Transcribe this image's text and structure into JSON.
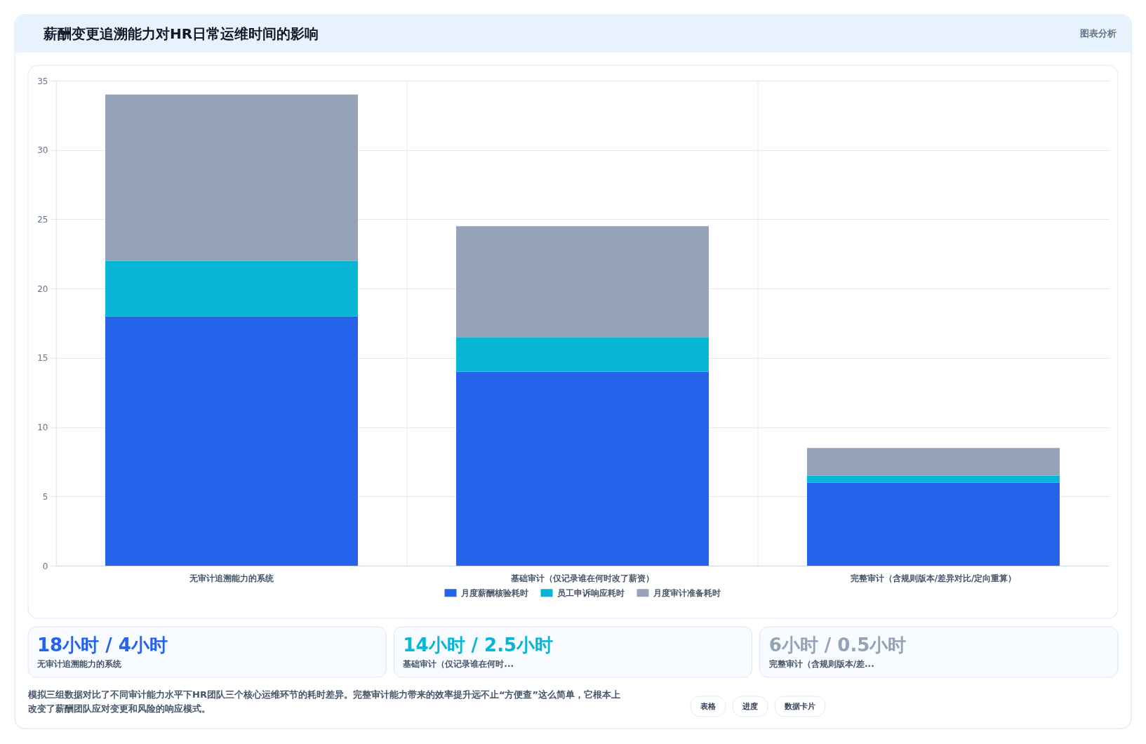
{
  "chart_data": {
    "type": "bar",
    "title": "薪酬变更追溯能力对HR日常运维时间的影响",
    "categories": [
      "无审计追溯能力的系统",
      "基础审计（仅记录谁在何时改了薪资）",
      "完整审计（含规则版本/差异对比/定向重算）"
    ],
    "series": [
      {
        "name": "月度薪酬核验耗时",
        "color": "#2563eb",
        "values": [
          18,
          14,
          6
        ]
      },
      {
        "name": "员工申诉响应耗时",
        "color": "#06b6d4",
        "values": [
          4,
          2.5,
          0.5
        ]
      },
      {
        "name": "月度审计准备耗时",
        "color": "#94a3b8",
        "values": [
          12,
          8,
          2
        ]
      }
    ],
    "stacked": true,
    "ylim": [
      0,
      35
    ],
    "yticks": [
      0,
      5,
      10,
      15,
      20,
      25,
      30,
      35
    ],
    "grid": true,
    "legend": "bottom",
    "annotations": [
      "图表分析",
      "18小时 / 4小时",
      "无审计追溯能力的系统",
      "14小时 / 2.5小时",
      "基础审计（仅记录谁在何时...",
      "6小时 / 0.5小时",
      "完整审计（含规则版本/差...",
      "模拟三组数据对比了不同审计能力水平下HR团队三个核心运维环节的耗时差异。完整审计能力带来的效率提升远不止“方便查”这么简单，它根本上改变了薪酬团队应对变更和风险的响应模式。",
      "表格",
      "进度",
      "数据卡片"
    ]
  }
}
